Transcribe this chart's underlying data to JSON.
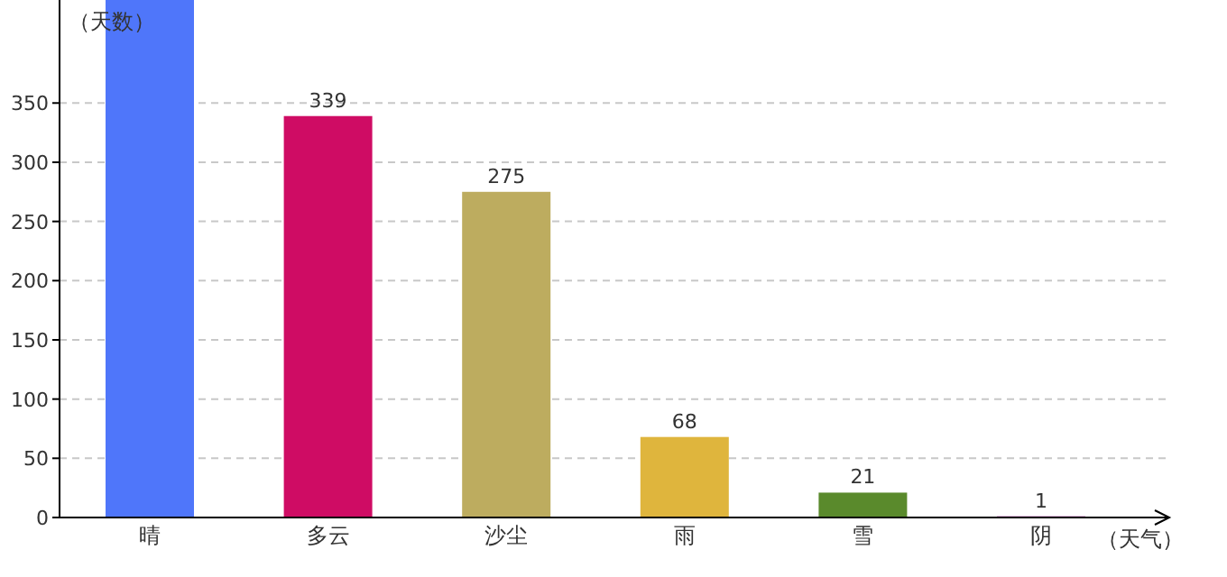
{
  "chart_data": {
    "type": "bar",
    "ylabel": "（天数）",
    "xlabel": "（天气）",
    "categories": [
      "晴",
      "多云",
      "沙尘",
      "雨",
      "雪",
      "阴"
    ],
    "values": [
      437,
      339,
      275,
      68,
      21,
      1
    ],
    "colors": [
      "#4f76fa",
      "#cf0c64",
      "#bdac5f",
      "#dfb53d",
      "#5a8a2c",
      "#9a1a8e"
    ],
    "value_labels": [
      null,
      "339",
      "275",
      "68",
      "21",
      "1"
    ],
    "ylim": [
      0,
      437
    ],
    "yticks": [
      0,
      50,
      100,
      150,
      200,
      250,
      300,
      350
    ],
    "grid": "y"
  }
}
